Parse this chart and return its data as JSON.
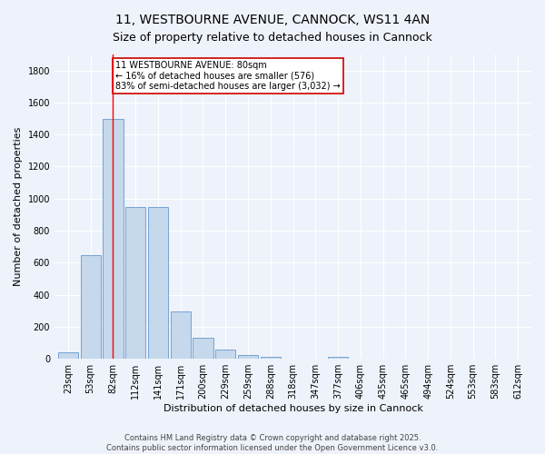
{
  "title": "11, WESTBOURNE AVENUE, CANNOCK, WS11 4AN",
  "subtitle": "Size of property relative to detached houses in Cannock",
  "xlabel": "Distribution of detached houses by size in Cannock",
  "ylabel": "Number of detached properties",
  "categories": [
    "23sqm",
    "53sqm",
    "82sqm",
    "112sqm",
    "141sqm",
    "171sqm",
    "200sqm",
    "229sqm",
    "259sqm",
    "288sqm",
    "318sqm",
    "347sqm",
    "377sqm",
    "406sqm",
    "435sqm",
    "465sqm",
    "494sqm",
    "524sqm",
    "553sqm",
    "583sqm",
    "612sqm"
  ],
  "values": [
    40,
    650,
    1500,
    950,
    950,
    295,
    130,
    60,
    25,
    12,
    0,
    0,
    10,
    0,
    0,
    0,
    0,
    0,
    0,
    0,
    0
  ],
  "bar_color": "#c5d8ec",
  "bar_edge_color": "#6699cc",
  "bar_edge_width": 0.6,
  "red_line_x": 2.0,
  "annotation_text": "11 WESTBOURNE AVENUE: 80sqm\n← 16% of detached houses are smaller (576)\n83% of semi-detached houses are larger (3,032) →",
  "annotation_box_color": "#ffffff",
  "annotation_box_edge": "#cc0000",
  "ylim": [
    0,
    1900
  ],
  "yticks": [
    0,
    200,
    400,
    600,
    800,
    1000,
    1200,
    1400,
    1600,
    1800
  ],
  "background_color": "#eef2fa",
  "grid_color": "#ffffff",
  "footer1": "Contains HM Land Registry data © Crown copyright and database right 2025.",
  "footer2": "Contains public sector information licensed under the Open Government Licence v3.0.",
  "title_fontsize": 10,
  "subtitle_fontsize": 9,
  "axis_label_fontsize": 8,
  "tick_fontsize": 7,
  "footer_fontsize": 6
}
